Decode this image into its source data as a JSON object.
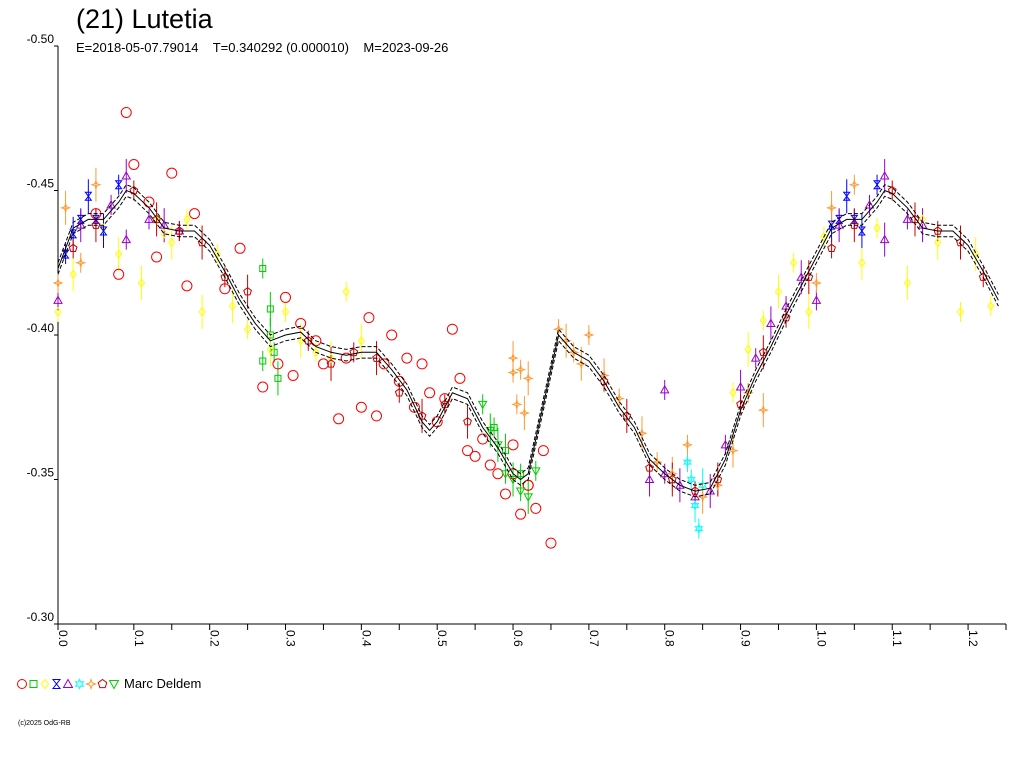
{
  "title": "(21) Lutetia",
  "subtitle": "E=2018-05-07.79014    T=0.340292 (0.000010)    M=2023-09-26",
  "legend_label": "Marc Deldem",
  "copyright": "(c)2025 OdG-RB",
  "colors": {
    "circle": "#ff0000",
    "square": "#00cc00",
    "diamond": "#ffff00",
    "hourglass": "#0000ff",
    "triangle": "#9900cc",
    "star6": "#00ffff",
    "star4": "#ff9933",
    "pentagon": "#cc0000",
    "invtriangle": "#00cc00"
  },
  "legend_markers": [
    "circle",
    "square",
    "diamond",
    "hourglass",
    "triangle",
    "star6",
    "star4",
    "pentagon",
    "invtriangle"
  ],
  "chart_data": {
    "type": "scatter",
    "title": "(21) Lutetia",
    "xlim": [
      0.0,
      1.25
    ],
    "ylim": [
      -0.5,
      -0.3
    ],
    "y_inverted": true,
    "x_ticks": [
      0.0,
      0.1,
      0.2,
      0.3,
      0.4,
      0.5,
      0.6,
      0.7,
      0.8,
      0.9,
      1.0,
      1.1,
      1.2
    ],
    "x_tick_labels": [
      "0.0",
      "0.1",
      "0.2",
      "0.3",
      "0.4",
      "0.5",
      "0.6",
      "0.7",
      "0.8",
      "0.9",
      "1.0",
      "1.1",
      "1.2"
    ],
    "y_ticks": [
      -0.5,
      -0.45,
      -0.4,
      -0.35,
      -0.3
    ],
    "y_tick_labels": [
      "-0.50",
      "-0.45",
      "-0.40",
      "-0.35",
      "-0.30"
    ],
    "fit_curve": {
      "x": [
        0.0,
        0.02,
        0.04,
        0.06,
        0.08,
        0.09,
        0.1,
        0.12,
        0.14,
        0.16,
        0.18,
        0.2,
        0.22,
        0.24,
        0.26,
        0.28,
        0.3,
        0.32,
        0.34,
        0.36,
        0.38,
        0.4,
        0.42,
        0.44,
        0.46,
        0.48,
        0.49,
        0.5,
        0.52,
        0.54,
        0.56,
        0.58,
        0.6,
        0.61,
        0.62,
        0.64,
        0.66,
        0.68,
        0.7,
        0.72,
        0.74,
        0.76,
        0.78,
        0.8,
        0.82,
        0.84,
        0.86,
        0.88,
        0.9,
        0.92,
        0.94,
        0.96,
        0.98,
        1.0,
        1.02,
        1.04,
        1.06,
        1.08,
        1.09,
        1.1,
        1.12,
        1.14,
        1.16,
        1.18,
        1.2,
        1.22,
        1.24
      ],
      "y": [
        -0.423,
        -0.437,
        -0.44,
        -0.44,
        -0.446,
        -0.45,
        -0.449,
        -0.444,
        -0.437,
        -0.436,
        -0.436,
        -0.431,
        -0.422,
        -0.412,
        -0.404,
        -0.398,
        -0.4,
        -0.401,
        -0.396,
        -0.394,
        -0.393,
        -0.394,
        -0.394,
        -0.388,
        -0.381,
        -0.37,
        -0.367,
        -0.37,
        -0.38,
        -0.378,
        -0.368,
        -0.361,
        -0.352,
        -0.35,
        -0.352,
        -0.376,
        -0.4,
        -0.394,
        -0.391,
        -0.384,
        -0.375,
        -0.368,
        -0.357,
        -0.352,
        -0.348,
        -0.346,
        -0.347,
        -0.357,
        -0.374,
        -0.386,
        -0.396,
        -0.407,
        -0.417,
        -0.427,
        -0.437,
        -0.44,
        -0.44,
        -0.446,
        -0.45,
        -0.449,
        -0.444,
        -0.437,
        -0.436,
        -0.436,
        -0.431,
        -0.422,
        -0.412
      ],
      "offset_band": 0.002
    },
    "series": [
      {
        "marker": "circle",
        "x": [
          0.1,
          0.09,
          0.12,
          0.15,
          0.17,
          0.08,
          0.05,
          0.18,
          0.22,
          0.24,
          0.27,
          0.29,
          0.3,
          0.31,
          0.32,
          0.34,
          0.37,
          0.38,
          0.4,
          0.42,
          0.44,
          0.45,
          0.47,
          0.48,
          0.49,
          0.5,
          0.52,
          0.53,
          0.54,
          0.55,
          0.57,
          0.58,
          0.59,
          0.6,
          0.61,
          0.62,
          0.63,
          0.64,
          0.65,
          0.13,
          0.35,
          0.43,
          0.51,
          0.56,
          0.6,
          0.62,
          0.41,
          0.46
        ],
        "y": [
          -0.459,
          -0.477,
          -0.446,
          -0.456,
          -0.417,
          -0.421,
          -0.442,
          -0.442,
          -0.416,
          -0.43,
          -0.382,
          -0.39,
          -0.413,
          -0.386,
          -0.404,
          -0.398,
          -0.371,
          -0.392,
          -0.375,
          -0.372,
          -0.4,
          -0.384,
          -0.375,
          -0.39,
          -0.38,
          -0.37,
          -0.402,
          -0.385,
          -0.36,
          -0.358,
          -0.355,
          -0.352,
          -0.345,
          -0.352,
          -0.338,
          -0.348,
          -0.34,
          -0.36,
          -0.328,
          -0.427,
          -0.39,
          -0.39,
          -0.378,
          -0.364,
          -0.362,
          -0.348,
          -0.406,
          -0.392
        ]
      },
      {
        "marker": "square",
        "x": [
          0.27,
          0.28,
          0.285,
          0.29,
          0.27,
          0.28,
          0.575,
          0.59,
          0.61
        ],
        "y": [
          -0.423,
          -0.4,
          -0.394,
          -0.385,
          -0.391,
          -0.409,
          -0.368,
          -0.36,
          -0.352
        ]
      },
      {
        "marker": "diamond",
        "x": [
          0.0,
          0.02,
          0.06,
          0.11,
          0.13,
          0.15,
          0.17,
          0.19,
          0.21,
          0.23,
          0.25,
          0.28,
          0.3,
          0.32,
          0.34,
          0.36,
          0.38,
          0.4,
          0.89,
          0.91,
          0.93,
          0.95,
          0.97,
          0.99,
          1.01,
          1.06,
          1.08,
          1.12,
          1.14,
          1.16,
          1.19,
          1.21,
          1.23,
          0.08,
          0.14
        ],
        "y": [
          -0.408,
          -0.421,
          -0.437,
          -0.418,
          -0.44,
          -0.432,
          -0.44,
          -0.408,
          -0.428,
          -0.41,
          -0.402,
          -0.395,
          -0.408,
          -0.398,
          -0.394,
          -0.392,
          -0.415,
          -0.398,
          -0.38,
          -0.395,
          -0.405,
          -0.415,
          -0.425,
          -0.408,
          -0.434,
          -0.425,
          -0.437,
          -0.418,
          -0.44,
          -0.432,
          -0.408,
          -0.428,
          -0.41,
          -0.428,
          -0.435
        ]
      },
      {
        "marker": "hourglass",
        "x": [
          0.01,
          0.02,
          0.03,
          0.04,
          0.05,
          0.06,
          0.08,
          1.02,
          1.03,
          1.04,
          1.05,
          1.06,
          1.08
        ],
        "y": [
          -0.428,
          -0.435,
          -0.44,
          -0.448,
          -0.44,
          -0.436,
          -0.452,
          -0.438,
          -0.44,
          -0.448,
          -0.44,
          -0.436,
          -0.452
        ]
      },
      {
        "marker": "triangle",
        "x": [
          0.0,
          0.03,
          0.07,
          0.09,
          0.12,
          0.14,
          0.16,
          0.78,
          0.8,
          0.82,
          0.84,
          0.86,
          0.88,
          0.9,
          0.92,
          0.94,
          0.96,
          0.98,
          1.0,
          1.03,
          1.07,
          1.09,
          1.12,
          1.14,
          0.09,
          1.09,
          0.8
        ],
        "y": [
          -0.412,
          -0.438,
          -0.445,
          -0.455,
          -0.44,
          -0.438,
          -0.436,
          -0.35,
          -0.352,
          -0.348,
          -0.344,
          -0.346,
          -0.362,
          -0.382,
          -0.392,
          -0.404,
          -0.41,
          -0.42,
          -0.412,
          -0.438,
          -0.445,
          -0.455,
          -0.44,
          -0.438,
          -0.433,
          -0.433,
          -0.381
        ]
      },
      {
        "marker": "star6",
        "x": [
          0.83,
          0.84,
          0.845,
          0.85,
          0.835
        ],
        "y": [
          -0.356,
          -0.341,
          -0.333,
          -0.348,
          -0.35
        ]
      },
      {
        "marker": "star4",
        "x": [
          0.0,
          0.01,
          0.03,
          0.05,
          0.66,
          0.67,
          0.68,
          0.69,
          0.7,
          0.72,
          0.74,
          0.77,
          0.79,
          0.81,
          0.83,
          0.85,
          0.87,
          0.89,
          0.91,
          0.93,
          1.0,
          1.02,
          1.05,
          0.6,
          0.61,
          0.62,
          0.605,
          0.615,
          0.6
        ],
        "y": [
          -0.418,
          -0.444,
          -0.425,
          -0.452,
          -0.402,
          -0.398,
          -0.394,
          -0.39,
          -0.4,
          -0.386,
          -0.378,
          -0.366,
          -0.356,
          -0.352,
          -0.362,
          -0.344,
          -0.348,
          -0.36,
          -0.38,
          -0.374,
          -0.418,
          -0.444,
          -0.452,
          -0.392,
          -0.388,
          -0.385,
          -0.376,
          -0.373,
          -0.387
        ]
      },
      {
        "marker": "pentagon",
        "x": [
          0.02,
          0.05,
          0.1,
          0.13,
          0.16,
          0.19,
          0.22,
          0.25,
          0.33,
          0.36,
          0.39,
          0.42,
          0.45,
          0.48,
          0.51,
          0.54,
          0.72,
          0.75,
          0.78,
          0.81,
          0.84,
          0.87,
          0.9,
          0.93,
          0.96,
          0.99,
          1.02,
          1.05,
          1.1,
          1.13,
          1.16,
          1.19,
          1.22
        ],
        "y": [
          -0.43,
          -0.438,
          -0.45,
          -0.44,
          -0.436,
          -0.432,
          -0.42,
          -0.415,
          -0.398,
          -0.39,
          -0.394,
          -0.392,
          -0.38,
          -0.372,
          -0.376,
          -0.37,
          -0.384,
          -0.372,
          -0.354,
          -0.35,
          -0.346,
          -0.35,
          -0.376,
          -0.394,
          -0.406,
          -0.42,
          -0.43,
          -0.438,
          -0.45,
          -0.44,
          -0.436,
          -0.432,
          -0.42
        ]
      },
      {
        "marker": "invtriangle",
        "x": [
          0.56,
          0.58,
          0.59,
          0.6,
          0.61,
          0.62,
          0.63,
          0.57
        ],
        "y": [
          -0.376,
          -0.362,
          -0.352,
          -0.35,
          -0.346,
          -0.344,
          -0.353,
          -0.367
        ]
      }
    ]
  }
}
